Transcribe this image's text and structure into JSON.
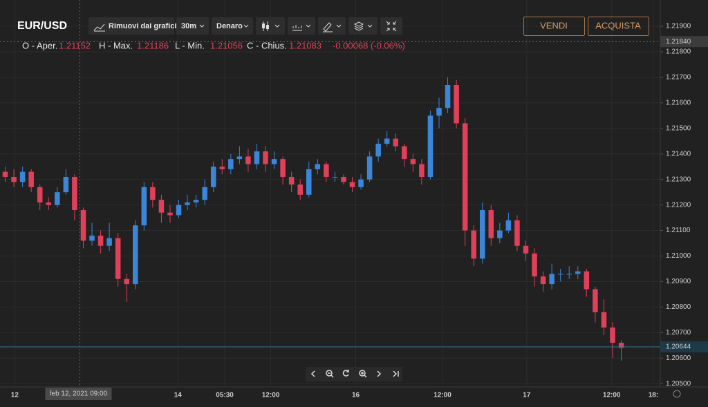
{
  "header": {
    "symbol": "EUR/USD",
    "remove_button": "Rimuovi dai grafici",
    "interval": "30m",
    "price_type": "Denaro",
    "sell": "VENDI",
    "buy": "ACQUISTA"
  },
  "ohlc": {
    "open_label": "O - Aper.",
    "open": "1.21152",
    "high_label": "H - Max.",
    "high": "1.21186",
    "low_label": "L - Min.",
    "low": "1.21056",
    "close_label": "C - Chius.",
    "close": "1.21083",
    "change": "-0.00068 (-0.06%)"
  },
  "chart_data": {
    "type": "candlestick",
    "up_color": "#3b86d9",
    "down_color": "#e0405a",
    "grid": true,
    "xlim": [
      -0.6,
      75.5
    ],
    "ylim": [
      1.20487,
      1.22003
    ],
    "yticks": [
      {
        "value": 1.219,
        "label": "1.21900"
      },
      {
        "value": 1.218,
        "label": "1.21800"
      },
      {
        "value": 1.217,
        "label": "1.21700"
      },
      {
        "value": 1.216,
        "label": "1.21600"
      },
      {
        "value": 1.215,
        "label": "1.21500"
      },
      {
        "value": 1.214,
        "label": "1.21400"
      },
      {
        "value": 1.213,
        "label": "1.21300"
      },
      {
        "value": 1.212,
        "label": "1.21200"
      },
      {
        "value": 1.211,
        "label": "1.21100"
      },
      {
        "value": 1.21,
        "label": "1.21000"
      },
      {
        "value": 1.209,
        "label": "1.20900"
      },
      {
        "value": 1.208,
        "label": "1.20800"
      },
      {
        "value": 1.207,
        "label": "1.20700"
      },
      {
        "value": 1.206,
        "label": "1.20600"
      },
      {
        "value": 1.205,
        "label": "1.20500"
      }
    ],
    "xticks": [
      {
        "value": 1.1,
        "label": "12"
      },
      {
        "value": 19.9,
        "label": "14"
      },
      {
        "value": 25.3,
        "label": "05:30"
      },
      {
        "value": 30.6,
        "label": "12:00"
      },
      {
        "value": 40.4,
        "label": "16"
      },
      {
        "value": 50.4,
        "label": "12:00"
      },
      {
        "value": 60.1,
        "label": "17"
      },
      {
        "value": 69.9,
        "label": "12:00"
      },
      {
        "value": 74.7,
        "label": "18:"
      }
    ],
    "crosshair": {
      "x": 8.6,
      "x_label": "feb 12, 2021  09:00",
      "y": 1.2184,
      "y_label": "1.21840"
    },
    "last_price": {
      "value": 1.20644,
      "label": "1.20644"
    },
    "open": [
      1.2133,
      1.2131,
      1.2129,
      1.2133,
      1.2127,
      1.2121,
      1.212,
      1.2125,
      1.2131,
      1.2118,
      1.2106,
      1.2108,
      1.2104,
      1.2107,
      1.2091,
      1.2089,
      1.2112,
      1.2127,
      1.2122,
      1.2117,
      1.2116,
      1.212,
      1.2121,
      1.2122,
      1.2127,
      1.2135,
      1.2134,
      1.2138,
      1.2139,
      1.2136,
      1.2141,
      1.2136,
      1.2138,
      1.2131,
      1.2128,
      1.2124,
      1.2134,
      1.2136,
      1.2131,
      1.2131,
      1.2129,
      1.2127,
      1.213,
      1.2139,
      1.2144,
      1.2146,
      1.2143,
      1.2138,
      1.2136,
      1.2131,
      1.2155,
      1.2158,
      1.2167,
      1.2152,
      1.211,
      1.2099,
      1.2118,
      1.2107,
      1.211,
      1.2114,
      1.2104,
      1.2101,
      1.2092,
      1.2089,
      1.2093,
      1.2093,
      1.2093,
      1.2094,
      1.2087,
      1.2078,
      1.2072,
      1.2066
    ],
    "high": [
      1.2135,
      1.2134,
      1.2135,
      1.2134,
      1.2128,
      1.2123,
      1.2127,
      1.2134,
      1.2132,
      1.2119,
      1.2113,
      1.211,
      1.2113,
      1.2109,
      1.2093,
      1.2114,
      1.2129,
      1.2129,
      1.2124,
      1.212,
      1.2122,
      1.2124,
      1.2124,
      1.213,
      1.2137,
      1.2138,
      1.214,
      1.2143,
      1.2142,
      1.2144,
      1.2143,
      1.2141,
      1.2139,
      1.2133,
      1.213,
      1.2137,
      1.2138,
      1.2137,
      1.2133,
      1.2132,
      1.2131,
      1.2132,
      1.2141,
      1.2146,
      1.2149,
      1.2148,
      1.2144,
      1.214,
      1.2138,
      1.2157,
      1.2162,
      1.217,
      1.2169,
      1.2154,
      1.2112,
      1.2121,
      1.212,
      1.2113,
      1.2117,
      1.2116,
      1.2106,
      1.2103,
      1.2094,
      1.2097,
      1.2095,
      1.2096,
      1.2096,
      1.2095,
      1.2088,
      1.2083,
      1.2074,
      1.2067
    ],
    "low": [
      1.2129,
      1.2127,
      1.2127,
      1.2125,
      1.2118,
      1.2118,
      1.2119,
      1.2124,
      1.2114,
      1.2103,
      1.2104,
      1.2101,
      1.2102,
      1.2088,
      1.2082,
      1.2087,
      1.211,
      1.2119,
      1.2113,
      1.2113,
      1.2115,
      1.2118,
      1.2119,
      1.212,
      1.2125,
      1.2132,
      1.2132,
      1.2136,
      1.2133,
      1.2134,
      1.2133,
      1.2134,
      1.2128,
      1.2125,
      1.2122,
      1.2123,
      1.2132,
      1.2129,
      1.2129,
      1.2128,
      1.2125,
      1.2126,
      1.2129,
      1.2137,
      1.2143,
      1.2141,
      1.2135,
      1.2133,
      1.2128,
      1.213,
      1.215,
      1.2156,
      1.215,
      1.2104,
      1.2096,
      1.2097,
      1.2104,
      1.2105,
      1.2109,
      1.2102,
      1.2098,
      1.2088,
      1.2086,
      1.2087,
      1.209,
      1.2091,
      1.2091,
      1.2084,
      1.2074,
      1.2069,
      1.206,
      1.2059
    ],
    "close": [
      1.2131,
      1.2129,
      1.2133,
      1.2127,
      1.2121,
      1.212,
      1.2125,
      1.2131,
      1.2118,
      1.2106,
      1.2108,
      1.2104,
      1.2107,
      1.2091,
      1.2089,
      1.2112,
      1.2127,
      1.2122,
      1.2117,
      1.2116,
      1.212,
      1.2121,
      1.2122,
      1.2127,
      1.2135,
      1.2134,
      1.2138,
      1.2139,
      1.2136,
      1.2141,
      1.2136,
      1.2138,
      1.2131,
      1.2128,
      1.2124,
      1.2134,
      1.2136,
      1.2131,
      1.2131,
      1.2129,
      1.2127,
      1.213,
      1.2139,
      1.2144,
      1.2146,
      1.2143,
      1.2138,
      1.2136,
      1.2131,
      1.2155,
      1.2158,
      1.2167,
      1.2152,
      1.211,
      1.2099,
      1.2118,
      1.2107,
      1.211,
      1.2114,
      1.2104,
      1.2101,
      1.2092,
      1.2089,
      1.2093,
      1.2093,
      1.2093,
      1.2094,
      1.2087,
      1.2078,
      1.2072,
      1.2066,
      1.2064
    ]
  }
}
